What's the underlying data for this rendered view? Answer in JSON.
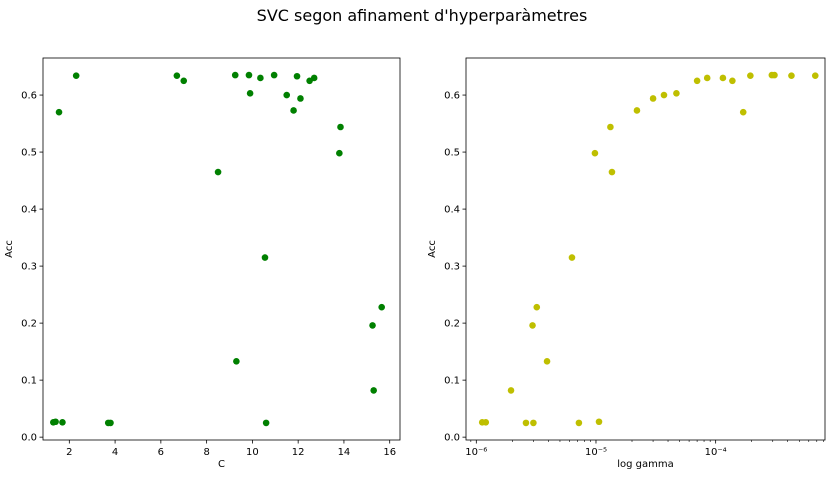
{
  "figure": {
    "title": "SVC segon afinament d'hyperparàmetres"
  },
  "chart_data": [
    {
      "type": "scatter",
      "xlabel": "C",
      "ylabel": "Acc",
      "xscale": "linear",
      "xlim": [
        0.85,
        16.45
      ],
      "ylim": [
        -0.005,
        0.665
      ],
      "xticks": [
        2,
        4,
        6,
        8,
        10,
        12,
        14,
        16
      ],
      "xtick_labels": [
        "2",
        "4",
        "6",
        "8",
        "10",
        "12",
        "14",
        "16"
      ],
      "yticks": [
        0.0,
        0.1,
        0.2,
        0.3,
        0.4,
        0.5,
        0.6
      ],
      "ytick_labels": [
        "0.0",
        "0.1",
        "0.2",
        "0.3",
        "0.4",
        "0.5",
        "0.6"
      ],
      "grid": false,
      "color": "#008000",
      "points": [
        {
          "x": 1.3,
          "y": 0.026
        },
        {
          "x": 1.4,
          "y": 0.027
        },
        {
          "x": 1.55,
          "y": 0.57
        },
        {
          "x": 1.7,
          "y": 0.026
        },
        {
          "x": 2.3,
          "y": 0.634
        },
        {
          "x": 3.7,
          "y": 0.025
        },
        {
          "x": 3.8,
          "y": 0.025
        },
        {
          "x": 6.7,
          "y": 0.634
        },
        {
          "x": 7.0,
          "y": 0.625
        },
        {
          "x": 8.5,
          "y": 0.465
        },
        {
          "x": 9.25,
          "y": 0.635
        },
        {
          "x": 9.3,
          "y": 0.133
        },
        {
          "x": 9.85,
          "y": 0.635
        },
        {
          "x": 9.9,
          "y": 0.603
        },
        {
          "x": 10.35,
          "y": 0.63
        },
        {
          "x": 10.55,
          "y": 0.315
        },
        {
          "x": 10.6,
          "y": 0.025
        },
        {
          "x": 10.95,
          "y": 0.635
        },
        {
          "x": 11.5,
          "y": 0.6
        },
        {
          "x": 11.8,
          "y": 0.573
        },
        {
          "x": 11.95,
          "y": 0.633
        },
        {
          "x": 12.1,
          "y": 0.594
        },
        {
          "x": 12.5,
          "y": 0.625
        },
        {
          "x": 12.7,
          "y": 0.63
        },
        {
          "x": 13.8,
          "y": 0.498
        },
        {
          "x": 13.85,
          "y": 0.544
        },
        {
          "x": 15.25,
          "y": 0.196
        },
        {
          "x": 15.3,
          "y": 0.082
        },
        {
          "x": 15.65,
          "y": 0.228
        }
      ]
    },
    {
      "type": "scatter",
      "xlabel": "log gamma",
      "ylabel": "Acc",
      "xscale": "log",
      "xlim": [
        8.2e-07,
        0.00082
      ],
      "ylim": [
        -0.005,
        0.665
      ],
      "xticks": [
        1e-06,
        1e-05,
        0.0001
      ],
      "xtick_labels": [
        "10⁻⁶",
        "10⁻⁵",
        "10⁻⁴"
      ],
      "yticks": [
        0.0,
        0.1,
        0.2,
        0.3,
        0.4,
        0.5,
        0.6
      ],
      "ytick_labels": [
        "0.0",
        "0.1",
        "0.2",
        "0.3",
        "0.4",
        "0.5",
        "0.6"
      ],
      "grid": false,
      "color": "#bfbf00",
      "points": [
        {
          "x": 1.12e-06,
          "y": 0.026
        },
        {
          "x": 1.2e-06,
          "y": 0.026
        },
        {
          "x": 1.95e-06,
          "y": 0.082
        },
        {
          "x": 2.6e-06,
          "y": 0.025
        },
        {
          "x": 2.95e-06,
          "y": 0.196
        },
        {
          "x": 3e-06,
          "y": 0.025
        },
        {
          "x": 3.2e-06,
          "y": 0.228
        },
        {
          "x": 3.9e-06,
          "y": 0.133
        },
        {
          "x": 6.3e-06,
          "y": 0.315
        },
        {
          "x": 7.2e-06,
          "y": 0.025
        },
        {
          "x": 9.8e-06,
          "y": 0.498
        },
        {
          "x": 1.06e-05,
          "y": 0.027
        },
        {
          "x": 1.32e-05,
          "y": 0.544
        },
        {
          "x": 1.36e-05,
          "y": 0.465
        },
        {
          "x": 2.2e-05,
          "y": 0.573
        },
        {
          "x": 3e-05,
          "y": 0.594
        },
        {
          "x": 3.7e-05,
          "y": 0.6
        },
        {
          "x": 4.7e-05,
          "y": 0.603
        },
        {
          "x": 7e-05,
          "y": 0.625
        },
        {
          "x": 8.5e-05,
          "y": 0.63
        },
        {
          "x": 0.000115,
          "y": 0.63
        },
        {
          "x": 0.000138,
          "y": 0.625
        },
        {
          "x": 0.00017,
          "y": 0.57
        },
        {
          "x": 0.000195,
          "y": 0.634
        },
        {
          "x": 0.000295,
          "y": 0.635
        },
        {
          "x": 0.00031,
          "y": 0.635
        },
        {
          "x": 0.00043,
          "y": 0.634
        },
        {
          "x": 0.00068,
          "y": 0.634
        }
      ]
    }
  ]
}
